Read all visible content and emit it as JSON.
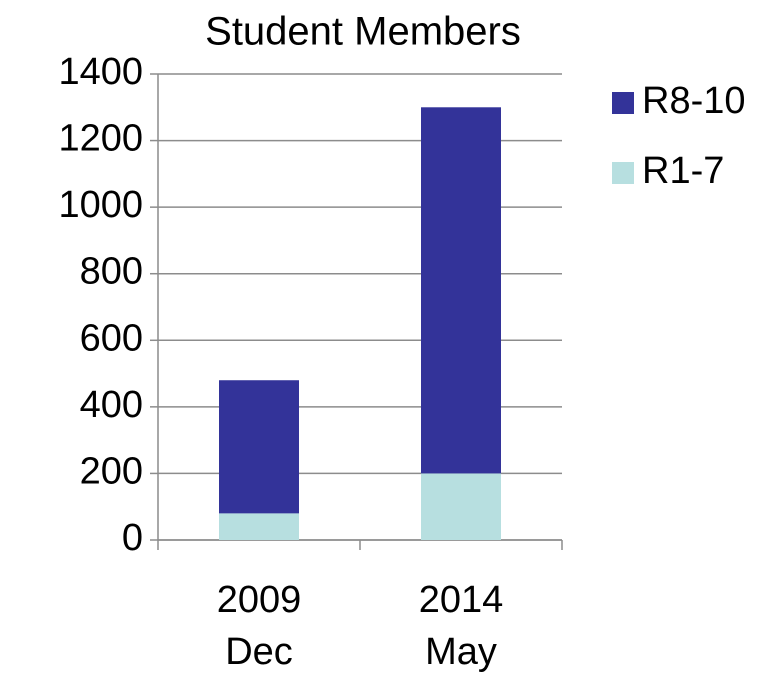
{
  "chart_data": {
    "type": "stacked_bar",
    "title": "Student Members",
    "categories": [
      "2009 Dec",
      "2014 May"
    ],
    "series": [
      {
        "name": "R1-7",
        "color": "#b7dfe0",
        "values": [
          80,
          200
        ]
      },
      {
        "name": "R8-10",
        "color": "#333399",
        "values": [
          400,
          1100
        ]
      }
    ],
    "ylim": [
      0,
      1400
    ],
    "yticks": [
      0,
      200,
      400,
      600,
      800,
      1000,
      1200,
      1400
    ],
    "grid": true
  }
}
